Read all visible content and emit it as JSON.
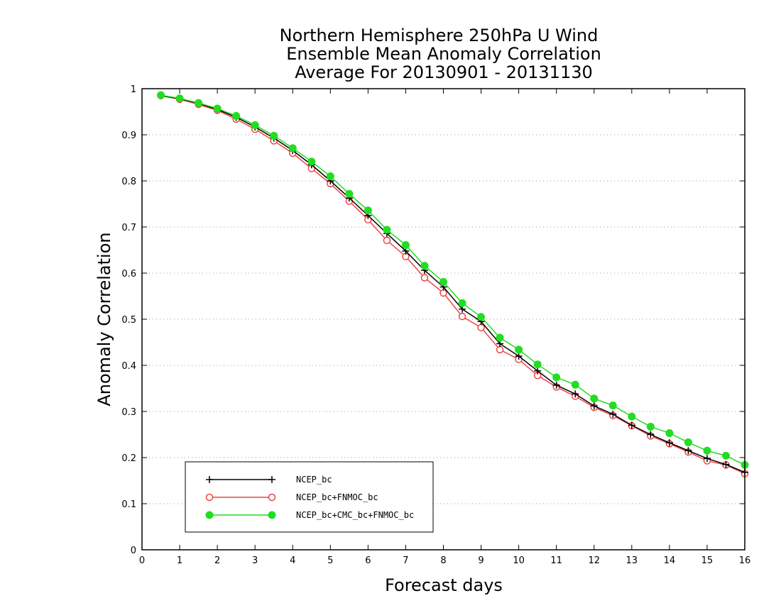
{
  "chart_data": {
    "type": "line",
    "title": [
      "Northern Hemisphere 250hPa U Wind",
      "Ensemble Mean Anomaly Correlation",
      "Average For 20130901 - 20131130"
    ],
    "xlabel": "Forecast days",
    "ylabel": "Anomaly Correlation",
    "xlim": [
      0,
      16
    ],
    "ylim": [
      0,
      1
    ],
    "xticks": [
      "0",
      "1",
      "2",
      "3",
      "4",
      "5",
      "6",
      "7",
      "8",
      "9",
      "10",
      "11",
      "12",
      "13",
      "14",
      "15",
      "16"
    ],
    "yticks": [
      "0",
      "0.1",
      "0.2",
      "0.3",
      "0.4",
      "0.5",
      "0.6",
      "0.7",
      "0.8",
      "0.9",
      "1"
    ],
    "grid": "horizontal dotted",
    "legend_position": "bottom-left",
    "x": [
      0.5,
      1,
      1.5,
      2,
      2.5,
      3,
      3.5,
      4,
      4.5,
      5,
      5.5,
      6,
      6.5,
      7,
      7.5,
      8,
      8.5,
      9,
      9.5,
      10,
      10.5,
      11,
      11.5,
      12,
      12.5,
      13,
      13.5,
      14,
      14.5,
      15,
      15.5,
      16
    ],
    "series": [
      {
        "name": "NCEP_bc",
        "color": "#000000",
        "marker": "plus",
        "values": [
          0.985,
          0.978,
          0.968,
          0.955,
          0.938,
          0.917,
          0.893,
          0.866,
          0.835,
          0.8,
          0.763,
          0.725,
          0.686,
          0.648,
          0.606,
          0.57,
          0.522,
          0.495,
          0.447,
          0.42,
          0.388,
          0.357,
          0.338,
          0.312,
          0.294,
          0.27,
          0.25,
          0.232,
          0.215,
          0.198,
          0.185,
          0.168
        ]
      },
      {
        "name": "NCEP_bc+FNMOC_bc",
        "color": "#ee4444",
        "marker": "open-circle",
        "values": [
          0.985,
          0.977,
          0.966,
          0.953,
          0.934,
          0.912,
          0.887,
          0.86,
          0.827,
          0.794,
          0.756,
          0.716,
          0.671,
          0.636,
          0.59,
          0.557,
          0.506,
          0.482,
          0.434,
          0.413,
          0.378,
          0.353,
          0.333,
          0.309,
          0.291,
          0.269,
          0.247,
          0.23,
          0.212,
          0.193,
          0.184,
          0.165
        ]
      },
      {
        "name": "NCEP_bc+CMC_bc+FNMOC_bc",
        "color": "#22dd22",
        "marker": "filled-circle",
        "values": [
          0.986,
          0.979,
          0.969,
          0.957,
          0.941,
          0.921,
          0.898,
          0.871,
          0.842,
          0.81,
          0.772,
          0.736,
          0.694,
          0.661,
          0.616,
          0.581,
          0.535,
          0.505,
          0.46,
          0.434,
          0.402,
          0.374,
          0.358,
          0.328,
          0.313,
          0.289,
          0.267,
          0.253,
          0.233,
          0.215,
          0.204,
          0.184
        ]
      }
    ]
  }
}
